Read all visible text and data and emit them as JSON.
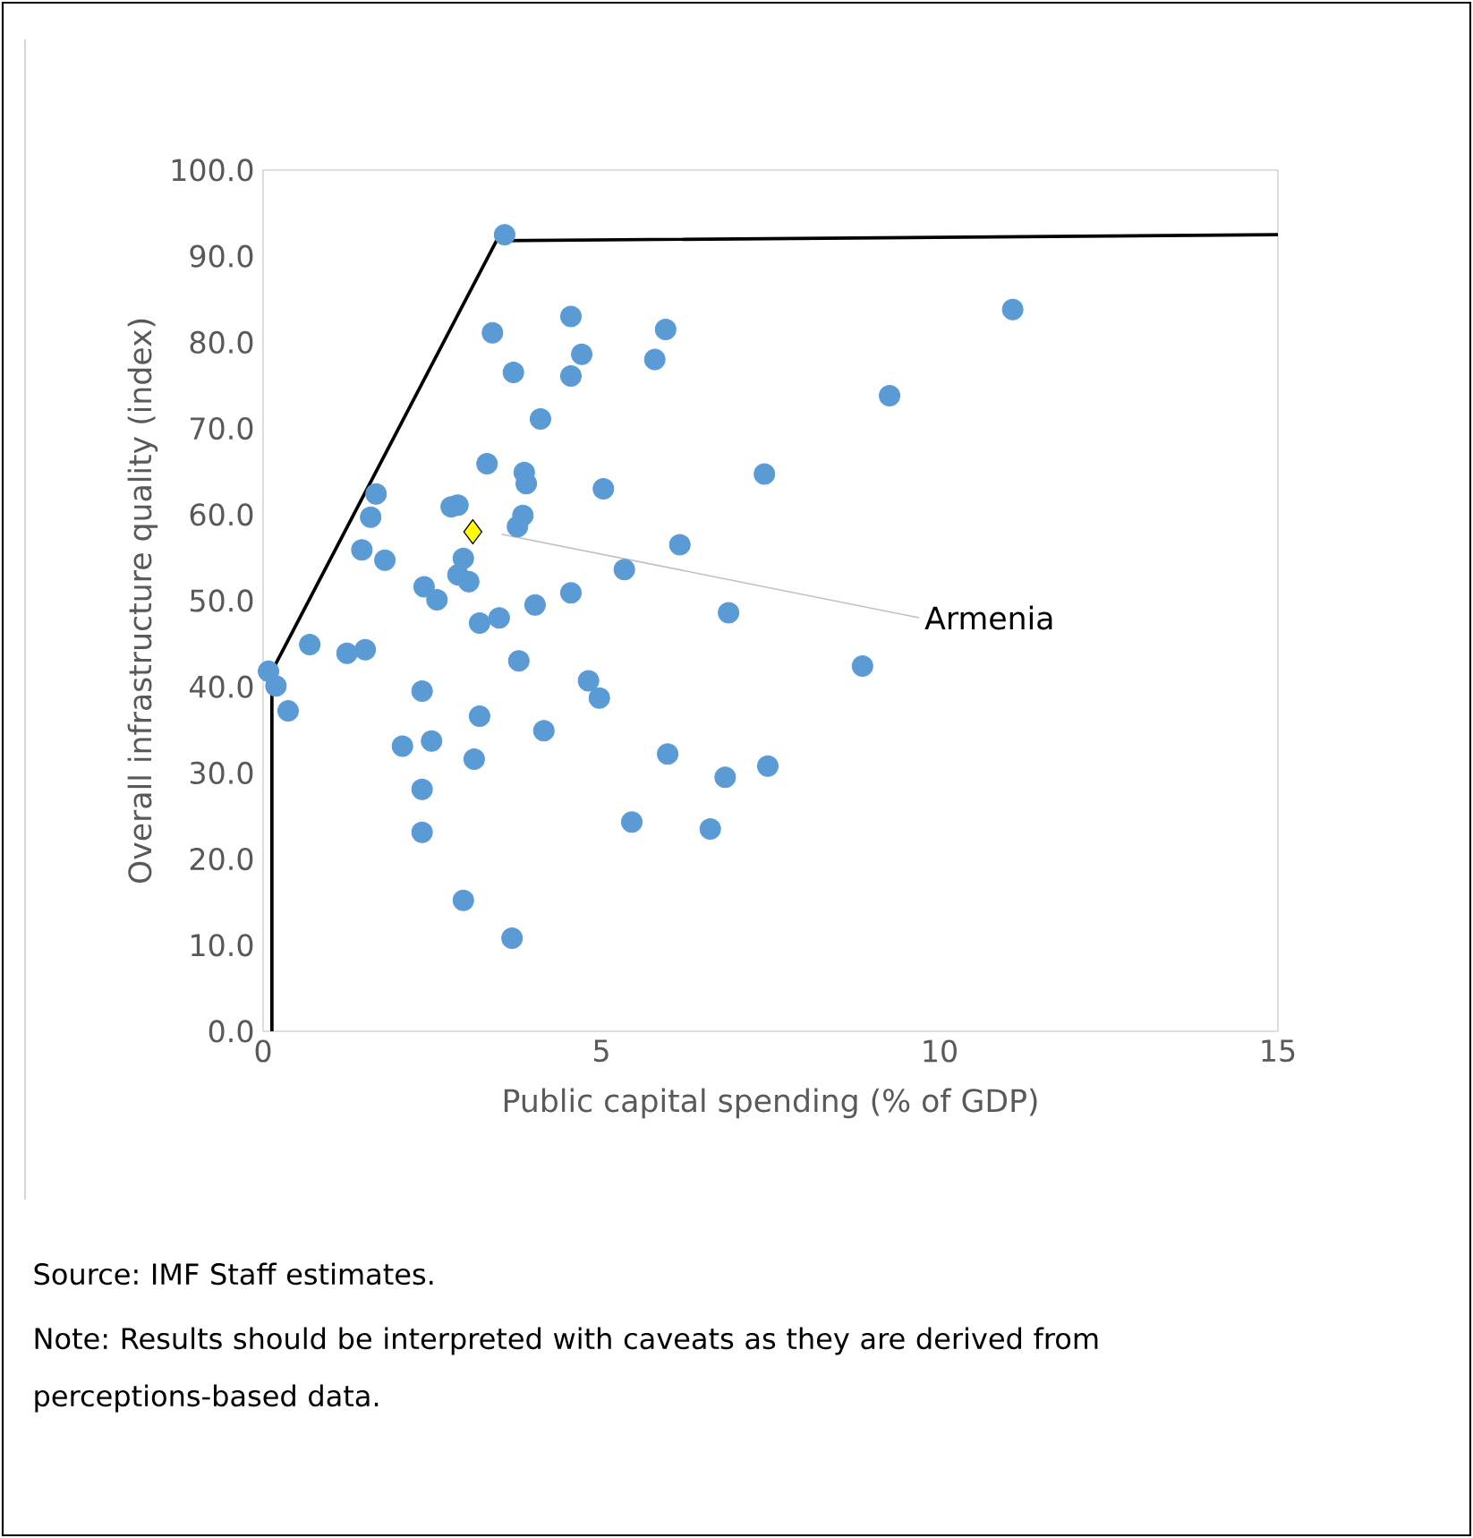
{
  "chart_data": {
    "type": "scatter",
    "xlabel": "Public capital spending (% of GDP)",
    "ylabel": "Overall infrastructure quality (index)",
    "xlim": [
      0,
      15
    ],
    "xticks": [
      0,
      5,
      10,
      15
    ],
    "ylim": [
      0,
      100
    ],
    "yticks": [
      {
        "value": 0,
        "label": "0.0"
      },
      {
        "value": 10,
        "label": "10.0"
      },
      {
        "value": 20,
        "label": "20.0"
      },
      {
        "value": 30,
        "label": "30.0"
      },
      {
        "value": 40,
        "label": "40.0"
      },
      {
        "value": 50,
        "label": "50.0"
      },
      {
        "value": 60,
        "label": "60.0"
      },
      {
        "value": 70,
        "label": "70.0"
      },
      {
        "value": 80,
        "label": "80.0"
      },
      {
        "value": 90,
        "label": "90.0"
      },
      {
        "value": 100,
        "label": "100.0"
      }
    ],
    "grid": false,
    "legend": false,
    "series": [
      {
        "marker": "circle",
        "color": "#5b9bd5",
        "x": [
          3.57,
          3.39,
          4.55,
          5.95,
          4.71,
          3.7,
          4.55,
          5.79,
          4.1,
          11.08,
          9.26,
          3.31,
          3.86,
          3.89,
          5.03,
          7.41,
          1.67,
          1.59,
          2.88,
          2.78,
          3.84,
          3.76,
          6.16,
          1.46,
          1.8,
          2.96,
          2.88,
          3.04,
          5.34,
          2.38,
          2.57,
          4.55,
          4.02,
          6.88,
          3.2,
          3.49,
          0.08,
          0.19,
          0.69,
          1.24,
          1.51,
          0.37,
          3.78,
          2.35,
          4.81,
          4.97,
          8.86,
          3.2,
          4.15,
          2.06,
          2.49,
          5.98,
          7.46,
          6.83,
          3.12,
          2.35,
          2.35,
          5.45,
          6.61,
          2.96,
          3.68
        ],
        "values": [
          92.5,
          81.1,
          83.0,
          81.5,
          78.6,
          76.5,
          76.1,
          78.0,
          71.1,
          83.8,
          73.8,
          65.9,
          64.9,
          63.6,
          63.0,
          64.7,
          62.4,
          59.7,
          61.1,
          60.9,
          59.9,
          58.6,
          56.5,
          55.9,
          54.7,
          54.9,
          53.0,
          52.2,
          53.6,
          51.6,
          50.1,
          50.9,
          49.5,
          48.6,
          47.4,
          48.0,
          41.8,
          40.1,
          44.9,
          43.9,
          44.3,
          37.2,
          43.0,
          39.5,
          40.7,
          38.7,
          42.4,
          36.6,
          34.9,
          33.1,
          33.7,
          32.2,
          30.8,
          29.5,
          31.6,
          28.1,
          23.1,
          24.3,
          23.5,
          15.2,
          10.8
        ]
      },
      {
        "name": "Armenia",
        "marker": "diamond",
        "color": "#ffff00",
        "x": [
          3.1
        ],
        "values": [
          58.0
        ]
      },
      {
        "type": "line",
        "marker": "none",
        "color": "#000000",
        "x": [
          0.13,
          0.13,
          3.45,
          15
        ],
        "values": [
          0,
          41.8,
          91.8,
          92.5
        ]
      }
    ],
    "annotations": [
      "Source: IMF Staff estimates.",
      "Note: Results should be interpreted with caveats as they are derived from perceptions-based data."
    ]
  }
}
